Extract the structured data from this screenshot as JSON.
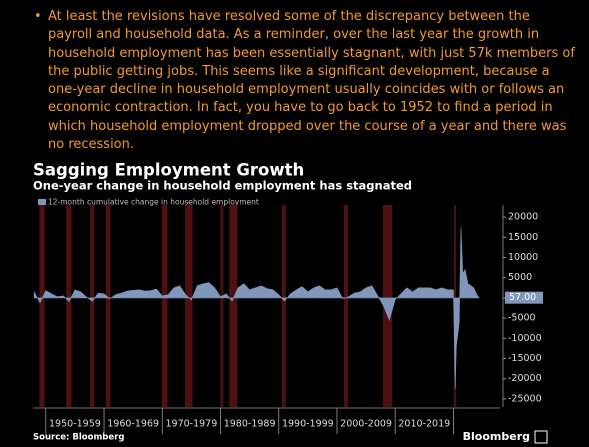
{
  "bullet_text": "At least the revisions have resolved some of the discrepancy between the payroll and household data. As a reminder, over the last year the growth in household employment has been essentially stagnant, with just 57k members of the public getting jobs. This seems like a significant development, because a one-year decline in household employment usually coincides with or follows an economic contraction. In fact, you have to go back to 1952 to find a period in which household employment dropped over the course of a year and there was no recession.",
  "chart_data": {
    "type": "area",
    "title": "Sagging Employment Growth",
    "subtitle": "One-year change in household employment has stagnated",
    "source": "Source: Bloomberg",
    "brand": "Bloomberg",
    "series": [
      {
        "name": "12-month cumulative change in household employment",
        "color": "#8096ba",
        "x": [
          1948,
          1949,
          1950,
          1951,
          1952,
          1953,
          1954,
          1955,
          1956,
          1957,
          1958,
          1959,
          1960,
          1961,
          1962,
          1963,
          1964,
          1965,
          1966,
          1967,
          1968,
          1969,
          1970,
          1971,
          1972,
          1973,
          1974,
          1975,
          1976,
          1977,
          1978,
          1979,
          1980,
          1981,
          1982,
          1983,
          1984,
          1985,
          1986,
          1987,
          1988,
          1989,
          1990,
          1991,
          1992,
          1993,
          1994,
          1995,
          1996,
          1997,
          1998,
          1999,
          2000,
          2001,
          2002,
          2003,
          2004,
          2005,
          2006,
          2007,
          2008,
          2009,
          2010,
          2011,
          2012,
          2013,
          2014,
          2015,
          2016,
          2017,
          2018,
          2019,
          2020,
          2020.3,
          2020.5,
          2021,
          2021.3,
          2021.6,
          2022,
          2022.5,
          2023,
          2023.5,
          2024,
          2024.4
        ],
        "values": [
          1500,
          -1200,
          1800,
          1000,
          300,
          500,
          -900,
          2000,
          1500,
          200,
          -800,
          1200,
          1000,
          -200,
          800,
          1200,
          1700,
          1900,
          2000,
          1700,
          1800,
          2200,
          500,
          800,
          2500,
          3000,
          800,
          -500,
          3000,
          3500,
          3800,
          2500,
          300,
          1000,
          -800,
          2500,
          3500,
          2000,
          2500,
          3000,
          2300,
          2000,
          800,
          -800,
          1000,
          2000,
          2800,
          1500,
          2500,
          3000,
          2000,
          2000,
          2500,
          -200,
          300,
          1200,
          1500,
          2500,
          3000,
          500,
          -2000,
          -5500,
          -400,
          1000,
          2500,
          1500,
          2500,
          2500,
          2500,
          2000,
          2500,
          2000,
          2000,
          -22500,
          -12000,
          -6000,
          17500,
          6000,
          7000,
          3500,
          3000,
          2500,
          800,
          57
        ]
      }
    ],
    "current_value": {
      "value": 57,
      "label": "57.00"
    },
    "recessions": [
      [
        1948.9,
        1949.8
      ],
      [
        1953.5,
        1954.4
      ],
      [
        1957.6,
        1958.3
      ],
      [
        1960.3,
        1961.1
      ],
      [
        1969.9,
        1970.9
      ],
      [
        1973.9,
        1975.2
      ],
      [
        1980.0,
        1980.5
      ],
      [
        1981.5,
        1982.9
      ],
      [
        1990.5,
        1991.2
      ],
      [
        2001.2,
        2001.9
      ],
      [
        2007.9,
        2009.5
      ],
      [
        2020.1,
        2020.3
      ]
    ],
    "xlim": [
      1947.8,
      2028
    ],
    "xticks": [
      {
        "value": 1955,
        "label": "1950-1959"
      },
      {
        "value": 1965,
        "label": "1960-1969"
      },
      {
        "value": 1975,
        "label": "1970-1979"
      },
      {
        "value": 1985,
        "label": "1980-1989"
      },
      {
        "value": 1995,
        "label": "1990-1999"
      },
      {
        "value": 2005,
        "label": "2000-2009"
      },
      {
        "value": 2015,
        "label": "2010-2019"
      }
    ],
    "ylim": [
      -27000,
      23000
    ],
    "yticks": [
      20000,
      15000,
      10000,
      5000,
      0,
      -5000,
      -10000,
      -15000,
      -20000,
      -25000
    ],
    "y_axis_side": "right"
  }
}
